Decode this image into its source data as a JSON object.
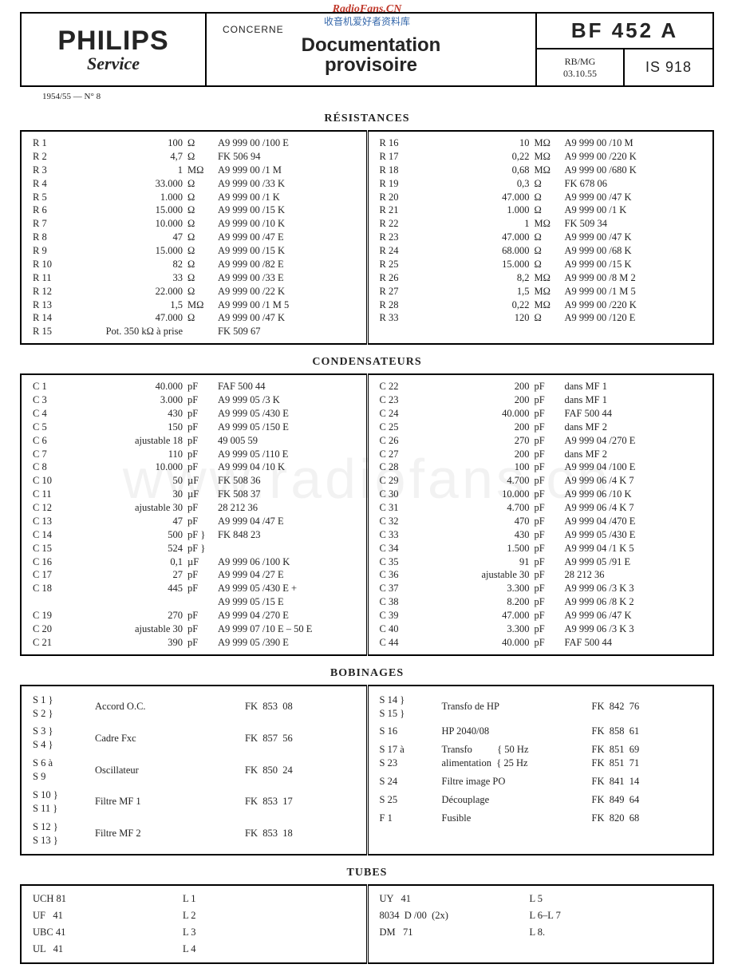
{
  "watermarks": {
    "top1": "RadioFans.CN",
    "top2": "收音机爱好者资料库",
    "body": "www.radiofans.cn"
  },
  "header": {
    "logo": "PHILIPS",
    "logo_sub": "Service",
    "concerne": "CONCERNE",
    "title1": "Documentation",
    "title2": "provisoire",
    "model": "BF 452 A",
    "rb1": "RB/MG",
    "rb2": "03.10.55",
    "is": "IS 918",
    "issue": "1954/55 — N° 8"
  },
  "sections": {
    "res": "RÉSISTANCES",
    "cond": "CONDENSATEURS",
    "bob": "BOBINAGES",
    "tubes": "TUBES"
  },
  "res_l": [
    [
      "R 1",
      "100",
      "Ω",
      "A9  999  00 /100 E"
    ],
    [
      "R 2",
      "4,7",
      "Ω",
      "FK 506  94"
    ],
    [
      "R 3",
      "1",
      "MΩ",
      "A9  999  00 /1 M"
    ],
    [
      "R 4",
      "33.000",
      "Ω",
      "A9  999  00 /33 K"
    ],
    [
      "R 5",
      "1.000",
      "Ω",
      "A9  999  00 /1 K"
    ],
    [
      "R 6",
      "15.000",
      "Ω",
      "A9  999  00 /15 K"
    ],
    [
      "R 7",
      "10.000",
      "Ω",
      "A9  999  00 /10 K"
    ],
    [
      "R 8",
      "47",
      "Ω",
      "A9  999  00 /47 E"
    ],
    [
      "R 9",
      "15.000",
      "Ω",
      "A9  999  00 /15 K"
    ],
    [
      "R 10",
      "82",
      "Ω",
      "A9  999  00 /82 E"
    ],
    [
      "R 11",
      "33",
      "Ω",
      "A9  999  00 /33 E"
    ],
    [
      "R 12",
      "22.000",
      "Ω",
      "A9  999  00 /22 K"
    ],
    [
      "R 13",
      "1,5",
      "MΩ",
      "A9  999  00 /1 M 5"
    ],
    [
      "R 14",
      "47.000",
      "Ω",
      "A9  999  00 /47 K"
    ],
    [
      "R 15",
      "Pot. 350 kΩ à prise",
      "",
      "FK 509  67"
    ]
  ],
  "res_r": [
    [
      "R 16",
      "10",
      "MΩ",
      "A9  999  00 /10 M"
    ],
    [
      "R 17",
      "0,22",
      "MΩ",
      "A9  999  00 /220 K"
    ],
    [
      "R 18",
      "0,68",
      "MΩ",
      "A9  999  00 /680 K"
    ],
    [
      "R 19",
      "0,3",
      "Ω",
      "FK 678  06"
    ],
    [
      "R 20",
      "47.000",
      "Ω",
      "A9  999  00 /47 K"
    ],
    [
      "R 21",
      "1.000",
      "Ω",
      "A9  999  00 /1 K"
    ],
    [
      "R 22",
      "1",
      "MΩ",
      "FK 509  34"
    ],
    [
      "R 23",
      "47.000",
      "Ω",
      "A9  999  00 /47 K"
    ],
    [
      "R 24",
      "68.000",
      "Ω",
      "A9  999  00 /68 K"
    ],
    [
      "R 25",
      "15.000",
      "Ω",
      "A9  999  00 /15 K"
    ],
    [
      "R 26",
      "8,2",
      "MΩ",
      "A9  999  00 /8 M 2"
    ],
    [
      "R 27",
      "1,5",
      "MΩ",
      "A9  999  00 /1 M 5"
    ],
    [
      "R 28",
      "0,22",
      "MΩ",
      "A9  999  00 /220 K"
    ],
    [
      "R 33",
      "120",
      "Ω",
      "A9  999  00 /120 E"
    ]
  ],
  "cond_l": [
    [
      "C 1",
      "40.000",
      "pF",
      "FAF 500  44"
    ],
    [
      "C 3",
      "3.000",
      "pF",
      "A9  999  05 /3 K"
    ],
    [
      "C 4",
      "430",
      "pF",
      "A9  999  05 /430 E"
    ],
    [
      "C 5",
      "150",
      "pF",
      "A9  999  05 /150 E"
    ],
    [
      "C 6",
      "ajustable 18",
      "pF",
      "49  005  59"
    ],
    [
      "C 7",
      "110",
      "pF",
      "A9  999  05 /110 E"
    ],
    [
      "C 8",
      "10.000",
      "pF",
      "A9  999  04 /10 K"
    ],
    [
      "C 10",
      "50",
      "µF",
      "FK 508  36"
    ],
    [
      "C 11",
      "30",
      "µF",
      "FK 508  37"
    ],
    [
      "C 12",
      "ajustable 30",
      "pF",
      "28  212  36"
    ],
    [
      "C 13",
      "47",
      "pF",
      "A9  999  04 /47 E"
    ],
    [
      "C 14",
      "500",
      "pF }",
      "FK 848  23"
    ],
    [
      "C 15",
      "524",
      "pF }",
      ""
    ],
    [
      "C 16",
      "0,1",
      "µF",
      "A9  999  06 /100 K"
    ],
    [
      "C 17",
      "27",
      "pF",
      "A9  999  04 /27 E"
    ],
    [
      "C 18",
      "445",
      "pF",
      "A9  999  05 /430 E +"
    ],
    [
      "",
      "",
      "",
      "A9  999  05 /15 E"
    ],
    [
      "C 19",
      "270",
      "pF",
      "A9  999  04 /270 E"
    ],
    [
      "C 20",
      "ajustable 30",
      "pF",
      "A9  999  07 /10 E – 50 E"
    ],
    [
      "C 21",
      "390",
      "pF",
      "A9  999  05 /390 E"
    ]
  ],
  "cond_r": [
    [
      "C 22",
      "200",
      "pF",
      "dans MF 1"
    ],
    [
      "C 23",
      "200",
      "pF",
      "dans MF 1"
    ],
    [
      "C 24",
      "40.000",
      "pF",
      "FAF 500  44"
    ],
    [
      "C 25",
      "200",
      "pF",
      "dans MF 2"
    ],
    [
      "C 26",
      "270",
      "pF",
      "A9  999  04 /270 E"
    ],
    [
      "C 27",
      "200",
      "pF",
      "dans MF 2"
    ],
    [
      "C 28",
      "100",
      "pF",
      "A9  999  04 /100 E"
    ],
    [
      "C 29",
      "4.700",
      "pF",
      "A9  999  06 /4 K 7"
    ],
    [
      "C 30",
      "10.000",
      "pF",
      "A9  999  06 /10 K"
    ],
    [
      "C 31",
      "4.700",
      "pF",
      "A9  999  06 /4 K 7"
    ],
    [
      "C 32",
      "470",
      "pF",
      "A9  999  04 /470 E"
    ],
    [
      "C 33",
      "430",
      "pF",
      "A9  999  05 /430 E"
    ],
    [
      "C 34",
      "1.500",
      "pF",
      "A9  999  04 /1 K 5"
    ],
    [
      "C 35",
      "91",
      "pF",
      "A9  999  05 /91 E"
    ],
    [
      "C 36",
      "ajustable 30",
      "pF",
      "28  212  36"
    ],
    [
      "C 37",
      "3.300",
      "pF",
      "A9  999  06 /3 K 3"
    ],
    [
      "C 38",
      "8.200",
      "pF",
      "A9  999  06 /8 K 2"
    ],
    [
      "C 39",
      "47.000",
      "pF",
      "A9  999  06 /47 K"
    ],
    [
      "C 40",
      "3.300",
      "pF",
      "A9  999  06 /3 K 3"
    ],
    [
      "C 44",
      "40.000",
      "pF",
      "FAF 500  44"
    ]
  ],
  "bob_l": [
    [
      "S 1 }\nS 2 }",
      "Accord O.C.",
      "FK  853  08"
    ],
    [
      "S 3 }\nS 4 }",
      "Cadre Fxc",
      "FK  857  56"
    ],
    [
      "S 6 à\nS 9",
      "Oscillateur",
      "FK  850  24"
    ],
    [
      "S 10 }\nS 11 }",
      "Filtre MF 1",
      "FK  853  17"
    ],
    [
      "S 12 }\nS 13 }",
      "Filtre MF 2",
      "FK  853  18"
    ]
  ],
  "bob_r": [
    [
      "S 14 }\nS 15 }",
      "Transfo de HP",
      "FK  842  76"
    ],
    [
      "S 16",
      "HP 2040/08",
      "FK  858  61"
    ],
    [
      "S 17 à\nS 23",
      "Transfo          { 50 Hz\nalimentation  { 25 Hz",
      "FK  851  69\nFK  851  71"
    ],
    [
      "S 24",
      "Filtre image PO",
      "FK  841  14"
    ],
    [
      "S 25",
      "Découplage",
      "FK  849  64"
    ],
    [
      "F 1",
      "Fusible",
      "FK  820  68"
    ]
  ],
  "tubes_l": [
    [
      "UCH 81",
      "L 1"
    ],
    [
      "UF   41",
      "L 2"
    ],
    [
      "UBC 41",
      "L 3"
    ],
    [
      "UL   41",
      "L 4"
    ]
  ],
  "tubes_r": [
    [
      "UY   41",
      "L 5"
    ],
    [
      "8034  D /00  (2x)",
      "L 6–L 7"
    ],
    [
      "DM   71",
      "L 8."
    ]
  ]
}
